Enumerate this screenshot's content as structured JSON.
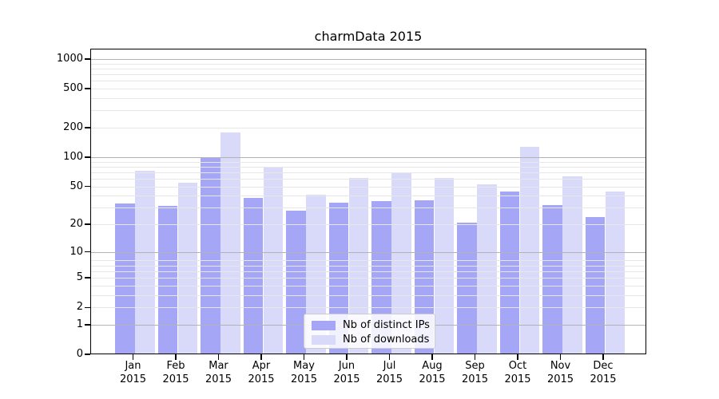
{
  "chart_data": {
    "type": "bar",
    "title": "charmData 2015",
    "year_label": "2015",
    "categories": [
      "Jan",
      "Feb",
      "Mar",
      "Apr",
      "May",
      "Jun",
      "Jul",
      "Aug",
      "Sep",
      "Oct",
      "Nov",
      "Dec"
    ],
    "series": [
      {
        "name": "Nb of distinct IPs",
        "color": "#a6a6f7",
        "values": [
          33,
          31,
          100,
          38,
          28,
          34,
          35,
          36,
          21,
          44,
          32,
          24
        ]
      },
      {
        "name": "Nb of downloads",
        "color": "#d9d9f9",
        "values": [
          72,
          54,
          180,
          80,
          41,
          61,
          68,
          61,
          52,
          127,
          64,
          44
        ]
      }
    ],
    "yscale": "log1p",
    "ylim": [
      0,
      1280
    ],
    "yticks": [
      0,
      1,
      2,
      5,
      10,
      20,
      50,
      100,
      200,
      500,
      1000
    ],
    "minor_grid_values": [
      2,
      3,
      4,
      5,
      6,
      7,
      8,
      20,
      30,
      40,
      50,
      60,
      70,
      80,
      90,
      200,
      300,
      400,
      500,
      600,
      700,
      800,
      900
    ],
    "major_grid_values": [
      1,
      10,
      100,
      1000
    ],
    "grid": "both",
    "legend_position": "lower center",
    "xlabel": "",
    "ylabel": ""
  },
  "colors": {
    "major_grid": "#b3b3b3",
    "minor_grid": "#e7e7e7",
    "spine": "#000000",
    "background": "#ffffff"
  }
}
